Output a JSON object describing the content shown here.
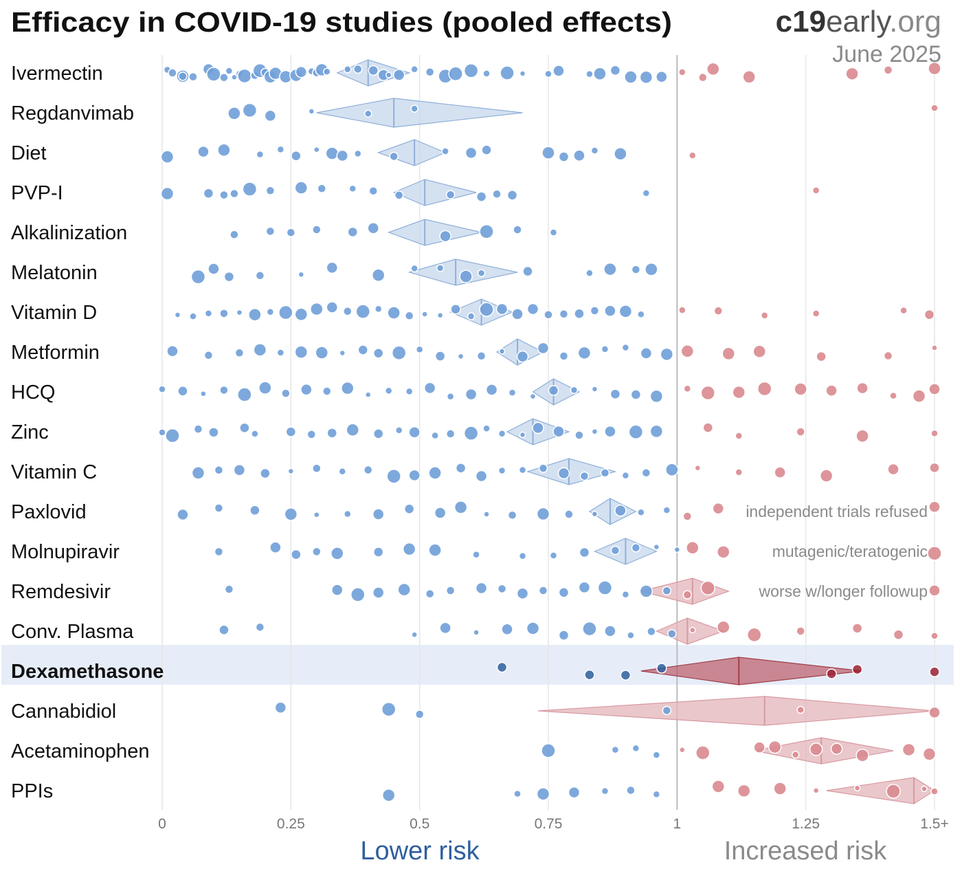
{
  "header": {
    "title": "Efficacy in COVID-19 studies (pooled effects)",
    "brand_bold": "c19",
    "brand_rest": "early",
    "brand_tld": ".org",
    "date": "June 2025"
  },
  "chart_data": {
    "type": "scatter",
    "title": "Efficacy in COVID-19 studies (pooled effects)",
    "xlabel_low": "Lower risk",
    "xlabel_high": "Increased risk",
    "x_ticks": [
      {
        "value": 0,
        "label": "0"
      },
      {
        "value": 0.25,
        "label": "0.25"
      },
      {
        "value": 0.5,
        "label": "0.5"
      },
      {
        "value": 0.75,
        "label": "0.75"
      },
      {
        "value": 1,
        "label": "1"
      },
      {
        "value": 1.25,
        "label": "1.25"
      },
      {
        "value": 1.5,
        "label": "1.5+"
      }
    ],
    "xlim": [
      0,
      1.5
    ],
    "reference_value": 1,
    "highlighted": "Dexamethasone",
    "colors": {
      "benefit": "#6f9fd8",
      "harm": "#d98a8f",
      "diamond_benefit": "#c5d7ec",
      "diamond_harm": "#e3b4ba",
      "diamond_highlight": "#b8505c",
      "highlight_row": "#e6edf8"
    },
    "treatments": [
      {
        "name": "Ivermectin",
        "pooled": 0.4,
        "ci": [
          0.34,
          0.48
        ],
        "studies": [
          0.01,
          0.02,
          0.04,
          0.04,
          0.06,
          0.09,
          0.1,
          0.12,
          0.13,
          0.14,
          0.15,
          0.16,
          0.18,
          0.19,
          0.2,
          0.21,
          0.22,
          0.24,
          0.26,
          0.27,
          0.29,
          0.3,
          0.31,
          0.32,
          0.36,
          0.38,
          0.41,
          0.43,
          0.44,
          0.46,
          0.49,
          0.52,
          0.55,
          0.57,
          0.6,
          0.63,
          0.67,
          0.7,
          0.75,
          0.77,
          0.83,
          0.85,
          0.88,
          0.91,
          0.94,
          0.97,
          1.01,
          1.05,
          1.07,
          1.14,
          1.34,
          1.41,
          1.5
        ]
      },
      {
        "name": "Regdanvimab",
        "pooled": 0.45,
        "ci": [
          0.3,
          0.7
        ],
        "studies": [
          0.14,
          0.17,
          0.21,
          0.29,
          0.4,
          0.49,
          1.5
        ]
      },
      {
        "name": "Diet",
        "pooled": 0.49,
        "ci": [
          0.42,
          0.55
        ],
        "studies": [
          0.01,
          0.08,
          0.12,
          0.19,
          0.23,
          0.26,
          0.3,
          0.33,
          0.35,
          0.38,
          0.45,
          0.55,
          0.6,
          0.63,
          0.75,
          0.78,
          0.81,
          0.84,
          0.89,
          1.03
        ]
      },
      {
        "name": "PVP-I",
        "pooled": 0.51,
        "ci": [
          0.45,
          0.61
        ],
        "studies": [
          0.01,
          0.09,
          0.12,
          0.14,
          0.17,
          0.21,
          0.27,
          0.31,
          0.37,
          0.41,
          0.46,
          0.56,
          0.62,
          0.65,
          0.68,
          0.94,
          1.27
        ]
      },
      {
        "name": "Alkalinization",
        "pooled": 0.51,
        "ci": [
          0.44,
          0.62
        ],
        "studies": [
          0.14,
          0.21,
          0.25,
          0.3,
          0.37,
          0.41,
          0.55,
          0.63,
          0.69,
          0.76
        ]
      },
      {
        "name": "Melatonin",
        "pooled": 0.57,
        "ci": [
          0.48,
          0.69
        ],
        "studies": [
          0.07,
          0.1,
          0.13,
          0.19,
          0.27,
          0.33,
          0.42,
          0.49,
          0.54,
          0.59,
          0.62,
          0.71,
          0.83,
          0.87,
          0.92,
          0.95
        ]
      },
      {
        "name": "Vitamin D",
        "pooled": 0.62,
        "ci": [
          0.56,
          0.68
        ],
        "studies": [
          0.03,
          0.06,
          0.09,
          0.12,
          0.15,
          0.18,
          0.21,
          0.24,
          0.27,
          0.3,
          0.33,
          0.36,
          0.39,
          0.42,
          0.45,
          0.48,
          0.51,
          0.54,
          0.57,
          0.6,
          0.63,
          0.66,
          0.69,
          0.72,
          0.75,
          0.78,
          0.81,
          0.84,
          0.87,
          0.9,
          0.93,
          1.01,
          1.08,
          1.17,
          1.27,
          1.44,
          1.49
        ]
      },
      {
        "name": "Metformin",
        "pooled": 0.69,
        "ci": [
          0.65,
          0.74
        ],
        "studies": [
          0.02,
          0.09,
          0.15,
          0.19,
          0.23,
          0.27,
          0.31,
          0.35,
          0.39,
          0.42,
          0.46,
          0.5,
          0.54,
          0.58,
          0.62,
          0.66,
          0.7,
          0.74,
          0.78,
          0.82,
          0.86,
          0.9,
          0.94,
          0.98,
          1.02,
          1.1,
          1.16,
          1.28,
          1.41,
          1.5
        ]
      },
      {
        "name": "HCQ",
        "pooled": 0.76,
        "ci": [
          0.72,
          0.81
        ],
        "studies": [
          0.0,
          0.04,
          0.08,
          0.12,
          0.16,
          0.2,
          0.24,
          0.28,
          0.32,
          0.36,
          0.4,
          0.44,
          0.48,
          0.52,
          0.56,
          0.6,
          0.64,
          0.68,
          0.72,
          0.76,
          0.8,
          0.84,
          0.88,
          0.92,
          0.96,
          1.02,
          1.06,
          1.12,
          1.17,
          1.24,
          1.3,
          1.36,
          1.42,
          1.47,
          1.5
        ]
      },
      {
        "name": "Zinc",
        "pooled": 0.72,
        "ci": [
          0.67,
          0.79
        ],
        "studies": [
          0.0,
          0.02,
          0.07,
          0.1,
          0.16,
          0.18,
          0.25,
          0.29,
          0.33,
          0.37,
          0.42,
          0.46,
          0.49,
          0.53,
          0.56,
          0.6,
          0.63,
          0.66,
          0.7,
          0.73,
          0.77,
          0.81,
          0.84,
          0.87,
          0.92,
          0.96,
          1.06,
          1.12,
          1.24,
          1.36,
          1.5
        ]
      },
      {
        "name": "Vitamin C",
        "pooled": 0.79,
        "ci": [
          0.71,
          0.88
        ],
        "studies": [
          0.07,
          0.11,
          0.15,
          0.2,
          0.25,
          0.3,
          0.35,
          0.4,
          0.45,
          0.49,
          0.53,
          0.58,
          0.62,
          0.66,
          0.7,
          0.74,
          0.78,
          0.82,
          0.86,
          0.9,
          0.94,
          0.99,
          1.04,
          1.12,
          1.2,
          1.29,
          1.42,
          1.5
        ]
      },
      {
        "name": "Paxlovid",
        "pooled": 0.87,
        "ci": [
          0.83,
          0.92
        ],
        "studies": [
          0.04,
          0.11,
          0.18,
          0.25,
          0.3,
          0.36,
          0.42,
          0.48,
          0.54,
          0.58,
          0.63,
          0.68,
          0.74,
          0.79,
          0.84,
          0.89,
          0.93,
          0.98,
          1.02,
          1.08,
          1.5
        ],
        "note": "independent trials refused"
      },
      {
        "name": "Molnupiravir",
        "pooled": 0.9,
        "ci": [
          0.84,
          0.96
        ],
        "studies": [
          0.11,
          0.22,
          0.26,
          0.3,
          0.34,
          0.42,
          0.48,
          0.53,
          0.61,
          0.7,
          0.76,
          0.82,
          0.88,
          0.92,
          0.96,
          1.0,
          1.03,
          1.09,
          1.5
        ],
        "note": "mutagenic/teratogenic"
      },
      {
        "name": "Remdesivir",
        "pooled": 1.03,
        "ci": [
          0.93,
          1.1
        ],
        "studies": [
          0.13,
          0.34,
          0.38,
          0.42,
          0.47,
          0.52,
          0.56,
          0.62,
          0.66,
          0.7,
          0.74,
          0.78,
          0.82,
          0.86,
          0.9,
          0.94,
          0.98,
          1.02,
          1.06,
          1.5
        ],
        "note": "worse w/longer followup"
      },
      {
        "name": "Conv. Plasma",
        "pooled": 1.02,
        "ci": [
          0.96,
          1.09
        ],
        "studies": [
          0.12,
          0.19,
          0.49,
          0.55,
          0.61,
          0.67,
          0.72,
          0.78,
          0.83,
          0.87,
          0.91,
          0.95,
          0.99,
          1.03,
          1.09,
          1.15,
          1.24,
          1.35,
          1.43,
          1.5
        ]
      },
      {
        "name": "Dexamethasone",
        "pooled": 1.12,
        "ci": [
          0.93,
          1.36
        ],
        "studies": [
          0.66,
          0.83,
          0.9,
          0.97,
          1.3,
          1.35,
          1.5
        ]
      },
      {
        "name": "Cannabidiol",
        "pooled": 1.17,
        "ci": [
          0.73,
          1.5
        ],
        "studies": [
          0.23,
          0.44,
          0.5,
          0.98,
          1.24,
          1.5
        ]
      },
      {
        "name": "Acetaminophen",
        "pooled": 1.28,
        "ci": [
          1.15,
          1.42
        ],
        "studies": [
          0.75,
          0.88,
          0.92,
          0.96,
          1.01,
          1.05,
          1.16,
          1.19,
          1.23,
          1.27,
          1.31,
          1.36,
          1.45,
          1.49
        ]
      },
      {
        "name": "PPIs",
        "pooled": 1.46,
        "ci": [
          1.29,
          1.5
        ],
        "studies": [
          0.44,
          0.69,
          0.74,
          0.8,
          0.86,
          0.91,
          0.96,
          1.08,
          1.13,
          1.2,
          1.27,
          1.35,
          1.42,
          1.48,
          1.5
        ]
      }
    ]
  }
}
